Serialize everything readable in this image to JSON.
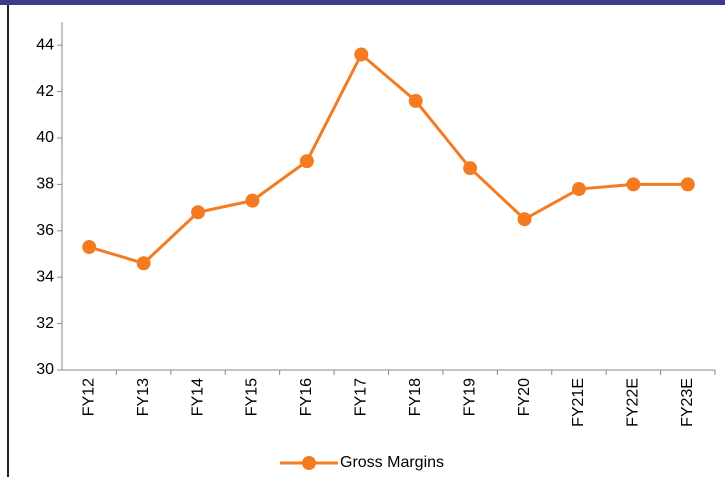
{
  "chart_data": {
    "type": "line",
    "categories": [
      "FY12",
      "FY13",
      "FY14",
      "FY15",
      "FY16",
      "FY17",
      "FY18",
      "FY19",
      "FY20",
      "FY21E",
      "FY22E",
      "FY23E"
    ],
    "series": [
      {
        "name": "Gross Margins",
        "color": "#f47b20",
        "values": [
          35.3,
          34.6,
          36.8,
          37.3,
          39.0,
          43.6,
          41.6,
          38.7,
          36.5,
          37.8,
          38.0,
          38.0
        ]
      }
    ],
    "ylim": [
      30,
      45
    ],
    "yticks": [
      30,
      32,
      34,
      36,
      38,
      40,
      42,
      44
    ],
    "grid": false,
    "legend": "bottom"
  }
}
